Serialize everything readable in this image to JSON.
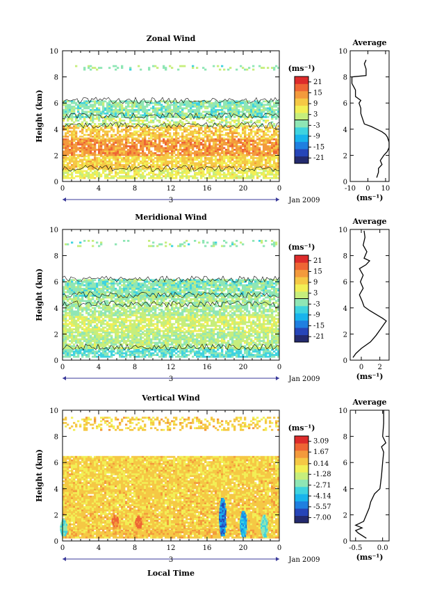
{
  "figure": {
    "xlabel": "Local Time",
    "date_label": "Jan 2009",
    "day_label": "3",
    "unit_label": "(ms⁻¹)",
    "colormap": [
      "#232a6e",
      "#2645b8",
      "#1f7fe0",
      "#18b4ec",
      "#3fd3df",
      "#8fe6b5",
      "#c6ee7c",
      "#f2ef55",
      "#f5c845",
      "#f39a3c",
      "#ee6534",
      "#dd2b2b"
    ]
  },
  "chart_data": [
    {
      "type": "heatmap",
      "title": "Zonal Wind",
      "ylabel": "Height (km)",
      "x_ticks": [
        "0",
        "4",
        "8",
        "12",
        "16",
        "20",
        "0"
      ],
      "xlim": [
        0,
        24
      ],
      "y_ticks": [
        "0",
        "2",
        "4",
        "6",
        "8",
        "10"
      ],
      "ylim": [
        0,
        10
      ],
      "colorbar_ticks": [
        "21",
        "15",
        "9",
        "3",
        "-3",
        "-9",
        "-15",
        "-21"
      ],
      "colorbar_range": [
        -24,
        24
      ],
      "data_layers": [
        {
          "z": [
            0.3,
            1.0
          ],
          "value": 5,
          "coverage": 0.75
        },
        {
          "z": [
            1.0,
            2.0
          ],
          "value": 9,
          "coverage": 0.85
        },
        {
          "z": [
            2.0,
            3.3
          ],
          "value": 14,
          "coverage": 0.85
        },
        {
          "z": [
            3.3,
            4.3
          ],
          "value": 10,
          "coverage": 0.65
        },
        {
          "z": [
            4.3,
            5.0
          ],
          "value": 2,
          "coverage": 0.4
        },
        {
          "z": [
            5.0,
            6.2
          ],
          "value": -2,
          "coverage": 0.8
        },
        {
          "z": [
            8.6,
            8.9
          ],
          "value": -1,
          "coverage": 0.2
        }
      ],
      "average": {
        "title": "Average",
        "xlabel": "(ms⁻¹)",
        "x_ticks": [
          "-10",
          "0",
          "10"
        ],
        "xlim": [
          -10,
          12
        ],
        "y_ticks": [
          "0",
          "2",
          "4",
          "6",
          "8",
          "10"
        ],
        "ylim": [
          0,
          10
        ],
        "profile": [
          [
            5,
            0.3
          ],
          [
            6,
            0.7
          ],
          [
            6,
            1.0
          ],
          [
            8,
            1.3
          ],
          [
            7,
            1.6
          ],
          [
            9,
            2.0
          ],
          [
            11,
            2.3
          ],
          [
            12,
            2.6
          ],
          [
            12,
            3.0
          ],
          [
            11,
            3.4
          ],
          [
            10,
            3.6
          ],
          [
            8,
            3.8
          ],
          [
            5,
            4.0
          ],
          [
            2,
            4.2
          ],
          [
            -2,
            4.4
          ],
          [
            -3,
            4.8
          ],
          [
            -4,
            5.2
          ],
          [
            -4,
            5.6
          ],
          [
            -5,
            6.0
          ],
          [
            -4,
            6.2
          ],
          [
            -7,
            6.5
          ],
          [
            -7,
            7.0
          ],
          [
            -9,
            7.5
          ],
          [
            -9,
            8.0
          ],
          [
            -1,
            8.1
          ],
          [
            -1,
            8.6
          ],
          [
            -2,
            9.0
          ],
          [
            -1,
            9.3
          ]
        ]
      }
    },
    {
      "type": "heatmap",
      "title": "Meridional Wind",
      "ylabel": "Height (km)",
      "x_ticks": [
        "0",
        "4",
        "8",
        "12",
        "16",
        "20",
        "0"
      ],
      "xlim": [
        0,
        24
      ],
      "y_ticks": [
        "0",
        "2",
        "4",
        "6",
        "8",
        "10"
      ],
      "ylim": [
        0,
        10
      ],
      "colorbar_ticks": [
        "21",
        "15",
        "9",
        "3",
        "-3",
        "-9",
        "-15",
        "-21"
      ],
      "colorbar_range": [
        -24,
        24
      ],
      "data_layers": [
        {
          "z": [
            0.3,
            1.0
          ],
          "value": -4,
          "coverage": 0.8
        },
        {
          "z": [
            1.0,
            2.2
          ],
          "value": 1,
          "coverage": 0.85
        },
        {
          "z": [
            2.2,
            3.5
          ],
          "value": 3,
          "coverage": 0.8
        },
        {
          "z": [
            3.5,
            5.0
          ],
          "value": 0,
          "coverage": 0.75
        },
        {
          "z": [
            5.0,
            6.2
          ],
          "value": -2,
          "coverage": 0.85
        },
        {
          "z": [
            8.7,
            9.2
          ],
          "value": -1,
          "coverage": 0.15
        }
      ],
      "average": {
        "title": "Average",
        "xlabel": "(ms⁻¹)",
        "x_ticks": [
          "0",
          "2"
        ],
        "xlim": [
          -1.2,
          3
        ],
        "y_ticks": [
          "0",
          "2",
          "4",
          "6",
          "8",
          "10"
        ],
        "ylim": [
          0,
          10
        ],
        "profile": [
          [
            -0.9,
            0.2
          ],
          [
            -0.6,
            0.5
          ],
          [
            0,
            0.9
          ],
          [
            1.0,
            1.4
          ],
          [
            1.6,
            1.9
          ],
          [
            2.1,
            2.4
          ],
          [
            2.5,
            2.8
          ],
          [
            2.7,
            3.0
          ],
          [
            2.3,
            3.2
          ],
          [
            1.6,
            3.5
          ],
          [
            0.9,
            3.8
          ],
          [
            0.3,
            4.1
          ],
          [
            0.1,
            4.5
          ],
          [
            -0.2,
            5.0
          ],
          [
            0.2,
            5.5
          ],
          [
            -0.1,
            6.0
          ],
          [
            0.2,
            6.5
          ],
          [
            -0.2,
            7.0
          ],
          [
            0.5,
            7.3
          ],
          [
            0.9,
            7.6
          ],
          [
            0.3,
            7.8
          ],
          [
            0.6,
            8.3
          ],
          [
            0.2,
            8.8
          ],
          [
            0.4,
            9.4
          ],
          [
            0.3,
            9.9
          ]
        ]
      }
    },
    {
      "type": "heatmap",
      "title": "Vertical Wind",
      "ylabel": "Height (km)",
      "x_ticks": [
        "0",
        "4",
        "8",
        "12",
        "16",
        "20",
        "0"
      ],
      "xlim": [
        0,
        24
      ],
      "y_ticks": [
        "0",
        "2",
        "4",
        "6",
        "8",
        "10"
      ],
      "ylim": [
        0,
        10
      ],
      "colorbar_ticks": [
        "3.09",
        "1.67",
        "0.14",
        "-1.28",
        "-2.71",
        "-4.14",
        "-5.57",
        "-7.00"
      ],
      "colorbar_range": [
        -7.7,
        3.8
      ],
      "data_layers": [
        {
          "z": [
            0.3,
            1.0
          ],
          "value": 0.5,
          "coverage": 0.95
        },
        {
          "z": [
            1.0,
            4.0
          ],
          "value": 0.3,
          "coverage": 0.95
        },
        {
          "z": [
            4.0,
            6.5
          ],
          "value": 0.2,
          "coverage": 0.95
        },
        {
          "z": [
            8.5,
            9.5
          ],
          "value": 0.3,
          "coverage": 0.35
        }
      ],
      "updrafts": [
        {
          "x": 0.1,
          "z": [
            0.4,
            1.7
          ],
          "value": -3.5
        },
        {
          "x": 17.7,
          "z": [
            0.4,
            3.3
          ],
          "value": -6.5
        },
        {
          "x": 20.0,
          "z": [
            0.4,
            2.3
          ],
          "value": -5.5
        },
        {
          "x": 22.3,
          "z": [
            0.4,
            2.0
          ],
          "value": -3.5
        },
        {
          "x": 5.8,
          "z": [
            1.2,
            2.0
          ],
          "value": 2.4
        },
        {
          "x": 8.4,
          "z": [
            1.1,
            1.9
          ],
          "value": 2.8
        }
      ],
      "average": {
        "title": "Average",
        "xlabel": "(ms⁻¹)",
        "x_ticks": [
          "-0.5",
          "0.0"
        ],
        "xlim": [
          -0.6,
          0.12
        ],
        "y_ticks": [
          "0",
          "2",
          "4",
          "6",
          "8",
          "10"
        ],
        "ylim": [
          0,
          10
        ],
        "profile": [
          [
            -0.3,
            0.2
          ],
          [
            -0.45,
            0.6
          ],
          [
            -0.5,
            0.8
          ],
          [
            -0.38,
            1.0
          ],
          [
            -0.5,
            1.2
          ],
          [
            -0.45,
            1.3
          ],
          [
            -0.35,
            1.5
          ],
          [
            -0.3,
            2.0
          ],
          [
            -0.25,
            2.5
          ],
          [
            -0.22,
            3.0
          ],
          [
            -0.15,
            3.6
          ],
          [
            -0.05,
            4.0
          ],
          [
            -0.02,
            5.0
          ],
          [
            0.0,
            6.0
          ],
          [
            0.02,
            6.8
          ],
          [
            -0.02,
            7.2
          ],
          [
            0.06,
            7.5
          ],
          [
            0.0,
            8.0
          ],
          [
            0.02,
            9.0
          ],
          [
            0.02,
            10.0
          ]
        ]
      }
    }
  ]
}
